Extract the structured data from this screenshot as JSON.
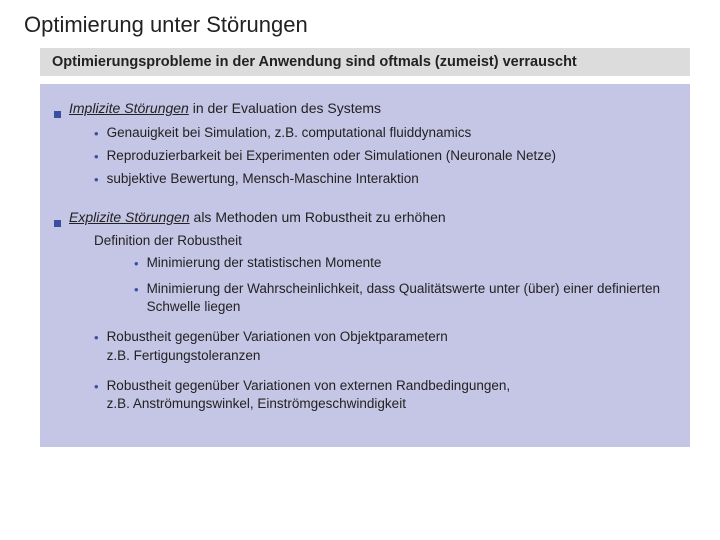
{
  "colors": {
    "accent": "#3b4fa0",
    "subtitle_bg": "#dcdcdc",
    "content_bg": "#c5c5e6",
    "text": "#222222",
    "page_bg": "#ffffff"
  },
  "typography": {
    "title_fontsize": 22,
    "subtitle_fontsize": 14.5,
    "body_fontsize": 13.5,
    "font_family": "Arial"
  },
  "title": "Optimierung unter Störungen",
  "subtitle": "Optimierungsprobleme in der Anwendung sind oftmals (zumeist) verrauscht",
  "section1": {
    "lead_italic": "Implizite Störungen",
    "lead_rest": " in der Evaluation des Systems",
    "items": [
      "Genauigkeit bei Simulation, z.B. computational fluiddynamics",
      "Reproduzierbarkeit bei Experimenten oder Simulationen (Neuronale Netze)",
      "subjektive Bewertung, Mensch-Maschine Interaktion"
    ]
  },
  "section2": {
    "lead_italic": "Explizite Störungen",
    "lead_rest": " als Methoden um Robustheit zu erhöhen",
    "definition_label": "Definition der Robustheit",
    "definition_items": [
      "Minimierung der statistischen Momente",
      "Minimierung der Wahrscheinlichkeit, dass Qualitätswerte unter (über) einer definierten Schwelle liegen"
    ],
    "robust_items": [
      {
        "line1": "Robustheit gegenüber Variationen von Objektparametern",
        "line2": "z.B. Fertigungstoleranzen"
      },
      {
        "line1": "Robustheit gegenüber Variationen von externen Randbedingungen,",
        "line2": "z.B. Anströmungswinkel, Einströmgeschwindigkeit"
      }
    ]
  }
}
